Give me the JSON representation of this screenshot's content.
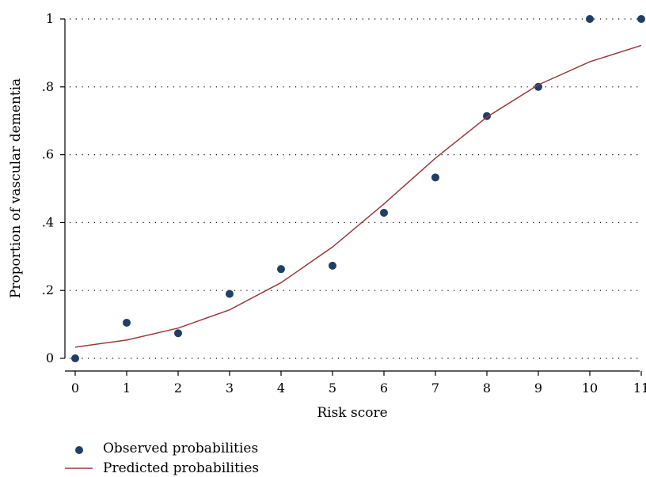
{
  "chart_data": {
    "type": "scatter",
    "xlabel": "Risk score",
    "ylabel": "Proportion of vascular dementia",
    "xlim": [
      0,
      11
    ],
    "ylim": [
      0,
      1
    ],
    "x_ticks": [
      0,
      1,
      2,
      3,
      4,
      5,
      6,
      7,
      8,
      9,
      10,
      11
    ],
    "y_ticks": [
      {
        "value": 0,
        "label": "0"
      },
      {
        "value": 0.2,
        "label": ".2"
      },
      {
        "value": 0.4,
        "label": ".4"
      },
      {
        "value": 0.6,
        "label": ".6"
      },
      {
        "value": 0.8,
        "label": ".8"
      },
      {
        "value": 1,
        "label": "1"
      }
    ],
    "grid": "horizontal dotted",
    "legend_position": "bottom-left",
    "series": [
      {
        "name": "Observed probabilities",
        "kind": "scatter",
        "color": "#1f3f66",
        "points": [
          [
            0,
            0
          ],
          [
            1,
            0.105
          ],
          [
            2,
            0.074
          ],
          [
            3,
            0.19
          ],
          [
            4,
            0.263
          ],
          [
            5,
            0.273
          ],
          [
            6,
            0.429
          ],
          [
            7,
            0.533
          ],
          [
            8,
            0.714
          ],
          [
            9,
            0.8
          ],
          [
            10,
            1.0
          ],
          [
            11,
            1.0
          ]
        ]
      },
      {
        "name": "Predicted probabilities",
        "kind": "line",
        "color": "#9b3a3a",
        "points": [
          [
            0,
            0.033
          ],
          [
            1,
            0.054
          ],
          [
            2,
            0.089
          ],
          [
            3,
            0.143
          ],
          [
            4,
            0.223
          ],
          [
            5,
            0.328
          ],
          [
            6,
            0.455
          ],
          [
            7,
            0.59
          ],
          [
            8,
            0.711
          ],
          [
            9,
            0.806
          ],
          [
            10,
            0.874
          ],
          [
            11,
            0.922
          ]
        ]
      }
    ]
  }
}
